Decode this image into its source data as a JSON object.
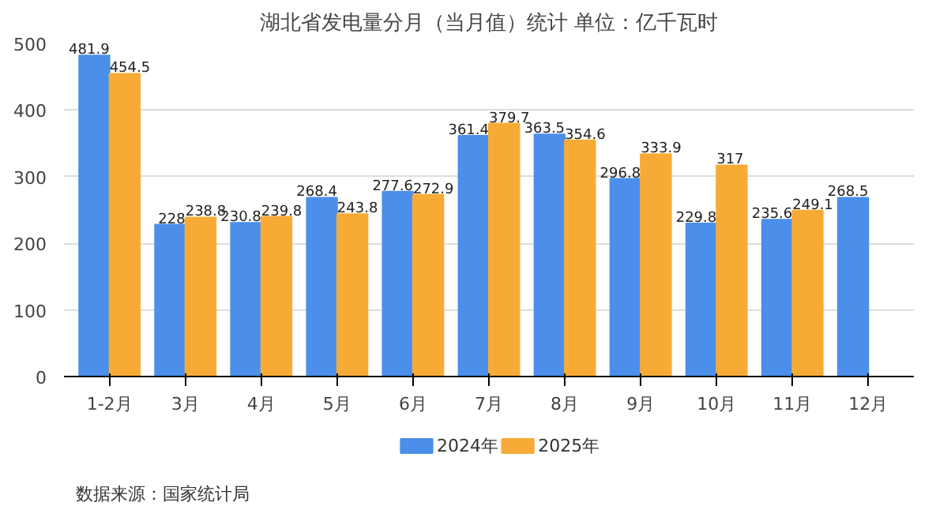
{
  "chart_data": {
    "type": "bar",
    "title": "湖北省发电量分月（当月值）统计 单位：亿千瓦时",
    "categories": [
      "1-2月",
      "3月",
      "4月",
      "5月",
      "6月",
      "7月",
      "8月",
      "9月",
      "10月",
      "11月",
      "12月"
    ],
    "series": [
      {
        "name": "2024年",
        "color": "#4b8fea",
        "values": [
          481.9,
          228,
          230.8,
          268.4,
          277.6,
          361.4,
          363.5,
          296.8,
          229.8,
          235.6,
          268.5
        ]
      },
      {
        "name": "2025年",
        "color": "#f7ab36",
        "values": [
          454.5,
          238.8,
          239.8,
          243.8,
          272.9,
          379.7,
          354.6,
          333.9,
          317,
          249.1,
          null
        ]
      }
    ],
    "ylim": [
      0,
      500
    ],
    "yticks": [
      0,
      100,
      200,
      300,
      400,
      500
    ],
    "grid": "y",
    "legend": "bottom",
    "data_labels": true,
    "annotations": [
      "数据来源：国家统计局"
    ]
  }
}
